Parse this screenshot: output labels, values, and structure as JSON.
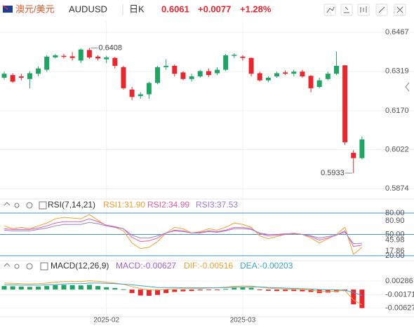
{
  "header": {
    "pair": "澳元/美元",
    "symbol": "AUDUSD",
    "period": "日K",
    "price": "0.6061",
    "change": "+0.0077",
    "change_pct": "+1.28%"
  },
  "chart_data": [
    {
      "type": "candlestick",
      "categories": [
        null,
        null,
        null,
        null,
        null,
        null,
        null,
        null,
        null,
        null,
        null,
        null,
        "2025-02",
        null,
        null,
        null,
        null,
        null,
        null,
        null,
        null,
        null,
        null,
        null,
        null,
        null,
        null,
        null,
        "2025-03",
        null,
        null,
        null,
        null,
        null,
        null,
        null,
        null,
        null,
        null,
        null,
        null,
        null,
        null
      ],
      "open": [
        0.6295,
        0.6305,
        0.63,
        0.629,
        0.631,
        0.6325,
        0.6372,
        0.6378,
        0.6376,
        0.636,
        0.64,
        0.6375,
        0.6365,
        0.637,
        0.6335,
        0.625,
        0.6225,
        0.6232,
        0.6275,
        0.6335,
        0.634,
        0.6315,
        0.629,
        0.63,
        0.632,
        0.6312,
        0.6325,
        0.6378,
        0.6375,
        0.637,
        0.6312,
        0.6285,
        0.63,
        0.6315,
        0.631,
        0.6318,
        0.6302,
        0.626,
        0.629,
        0.631,
        0.6342,
        0.601,
        0.599
      ],
      "high": [
        0.6318,
        0.6312,
        0.631,
        0.632,
        0.6338,
        0.638,
        0.6385,
        0.6385,
        0.6392,
        0.6406,
        0.6408,
        0.638,
        0.6378,
        0.6374,
        0.634,
        0.626,
        0.624,
        0.628,
        0.634,
        0.6365,
        0.6345,
        0.632,
        0.631,
        0.6325,
        0.633,
        0.6335,
        0.6385,
        0.6388,
        0.638,
        0.6372,
        0.6318,
        0.63,
        0.6318,
        0.6322,
        0.6325,
        0.6325,
        0.6305,
        0.6295,
        0.6318,
        0.6395,
        0.6342,
        0.602,
        0.6072
      ],
      "low": [
        0.6288,
        0.6275,
        0.6285,
        0.6255,
        0.63,
        0.6318,
        0.6368,
        0.6368,
        0.636,
        0.635,
        0.6366,
        0.636,
        0.635,
        0.633,
        0.625,
        0.621,
        0.6215,
        0.6215,
        0.627,
        0.6325,
        0.63,
        0.6285,
        0.628,
        0.6295,
        0.6298,
        0.6305,
        0.632,
        0.637,
        0.636,
        0.63,
        0.628,
        0.6278,
        0.6295,
        0.6305,
        0.63,
        0.6295,
        0.624,
        0.6255,
        0.6285,
        0.6305,
        0.604,
        0.5933,
        0.5985
      ],
      "close": [
        0.631,
        0.628,
        0.6295,
        0.6312,
        0.633,
        0.6375,
        0.638,
        0.6374,
        0.637,
        0.6402,
        0.6372,
        0.6368,
        0.6372,
        0.634,
        0.6255,
        0.6222,
        0.6232,
        0.6275,
        0.6335,
        0.634,
        0.631,
        0.629,
        0.63,
        0.632,
        0.6305,
        0.6325,
        0.638,
        0.6382,
        0.637,
        0.631,
        0.6285,
        0.6295,
        0.6312,
        0.631,
        0.6318,
        0.63,
        0.6255,
        0.6285,
        0.631,
        0.634,
        0.605,
        0.599,
        0.6061
      ],
      "up_color": "#20a464",
      "down_color": "#e8262e",
      "ylim": [
        0.584,
        0.651
      ],
      "yticks": [
        0.6467,
        0.6319,
        {
          "value": 0.617,
          "label": "0.6170"
        },
        0.6022,
        0.5874
      ],
      "annotations": [
        0.6408,
        0.5933
      ],
      "grid": true
    },
    {
      "type": "line",
      "title": "RSI(7,14,21)",
      "series": [
        {
          "name": "RSI1:31.90",
          "color": "#f0a030",
          "values": [
            62,
            58,
            60,
            58,
            62,
            66,
            72,
            74,
            73,
            72,
            78,
            70,
            62,
            60,
            55,
            38,
            30,
            32,
            40,
            52,
            60,
            58,
            52,
            54,
            58,
            56,
            60,
            66,
            64,
            60,
            48,
            44,
            47,
            50,
            52,
            50,
            45,
            38,
            44,
            50,
            60,
            22,
            31.9
          ]
        },
        {
          "name": "RSI2:34.99",
          "color": "#e45fa6",
          "values": [
            58,
            57,
            57,
            57,
            59,
            62,
            66,
            68,
            68,
            68,
            72,
            68,
            63,
            61,
            58,
            46,
            40,
            41,
            45,
            52,
            56,
            55,
            52,
            53,
            55,
            54,
            56,
            60,
            60,
            58,
            51,
            48,
            49,
            50,
            51,
            50,
            47,
            42,
            45,
            49,
            55,
            33,
            34.99
          ]
        },
        {
          "name": "RSI3:37.53",
          "color": "#9a7fd8",
          "values": [
            56,
            55,
            55,
            55,
            57,
            59,
            62,
            64,
            64,
            64,
            67,
            65,
            62,
            60,
            58,
            49,
            45,
            45,
            48,
            52,
            55,
            54,
            52,
            52,
            54,
            53,
            55,
            58,
            58,
            57,
            52,
            50,
            50,
            51,
            51,
            50,
            48,
            45,
            47,
            49,
            53,
            37,
            37.53
          ]
        }
      ],
      "ylim": [
        15,
        84
      ],
      "yticks": [
        {
          "value": 80,
          "label": "80.00"
        },
        {
          "value": 50,
          "label": "50.00"
        },
        {
          "value": 20,
          "label": "20.00"
        }
      ],
      "markers": [
        {
          "value": 80.9,
          "label": "80.90"
        },
        {
          "value": 45.98,
          "label": "45.98"
        },
        {
          "value": 17.86,
          "label": "17.86"
        }
      ],
      "ref_color": "#4a90d9"
    },
    {
      "type": "macd",
      "title": "MACD(12,26,9)",
      "series": [
        {
          "name": "MACD:-0.00627",
          "color": "#a060d0",
          "up_color": "#20a464",
          "down_color": "#e8262e",
          "values": [
            0.0012,
            0.0011,
            0.001,
            0.0009,
            0.001,
            0.0012,
            0.0015,
            0.0016,
            0.0015,
            0.0014,
            0.0016,
            0.0012,
            0.0008,
            0.0005,
            0.0001,
            -0.0012,
            -0.002,
            -0.0021,
            -0.0018,
            -0.0012,
            -0.0008,
            -0.0006,
            -0.0005,
            -0.0003,
            -0.0002,
            -0.0001,
            0.0002,
            0.0006,
            0.0007,
            0.0006,
            -0.0001,
            -0.0004,
            -0.0005,
            -0.0005,
            -0.0005,
            -0.0006,
            -0.0008,
            -0.0012,
            -0.001,
            -0.0008,
            -0.0005,
            -0.005,
            -0.00627
          ]
        },
        {
          "name": "DIF:-0.00516",
          "color": "#f0a030",
          "values": [
            0.0022,
            0.0021,
            0.002,
            0.0019,
            0.002,
            0.0022,
            0.0025,
            0.0027,
            0.0027,
            0.0027,
            0.003,
            0.0028,
            0.0025,
            0.0022,
            0.0018,
            0.001,
            0.0003,
            -0.0001,
            -0.0002,
            0.0001,
            0.0003,
            0.0003,
            0.0003,
            0.0004,
            0.0005,
            0.0006,
            0.0008,
            0.0011,
            0.0012,
            0.0012,
            0.0008,
            0.0005,
            0.0003,
            0.0002,
            0.0001,
            0.0,
            -0.0002,
            -0.0006,
            -0.0006,
            -0.0005,
            -0.0003,
            -0.0035,
            -0.00516
          ]
        },
        {
          "name": "DEA:-0.00203",
          "color": "#3ba7c9",
          "values": [
            0.0016,
            0.0016,
            0.0015,
            0.0015,
            0.0015,
            0.0016,
            0.0017,
            0.0019,
            0.002,
            0.002,
            0.0022,
            0.0022,
            0.0021,
            0.002,
            0.0018,
            0.0016,
            0.0013,
            0.001,
            0.0007,
            0.0007,
            0.0007,
            0.0006,
            0.0006,
            0.0006,
            0.0006,
            0.0006,
            0.0007,
            0.0008,
            0.0008,
            0.0009,
            0.0009,
            0.0007,
            0.0006,
            0.0005,
            0.0004,
            0.0003,
            0.0002,
            0.0,
            -0.0001,
            -0.0001,
            -0.0002,
            -0.001,
            -0.00203
          ]
        }
      ],
      "ylim": [
        -0.0092,
        0.0043
      ],
      "yticks": [
        0.00286,
        -0.00171,
        -0.00627
      ]
    }
  ]
}
